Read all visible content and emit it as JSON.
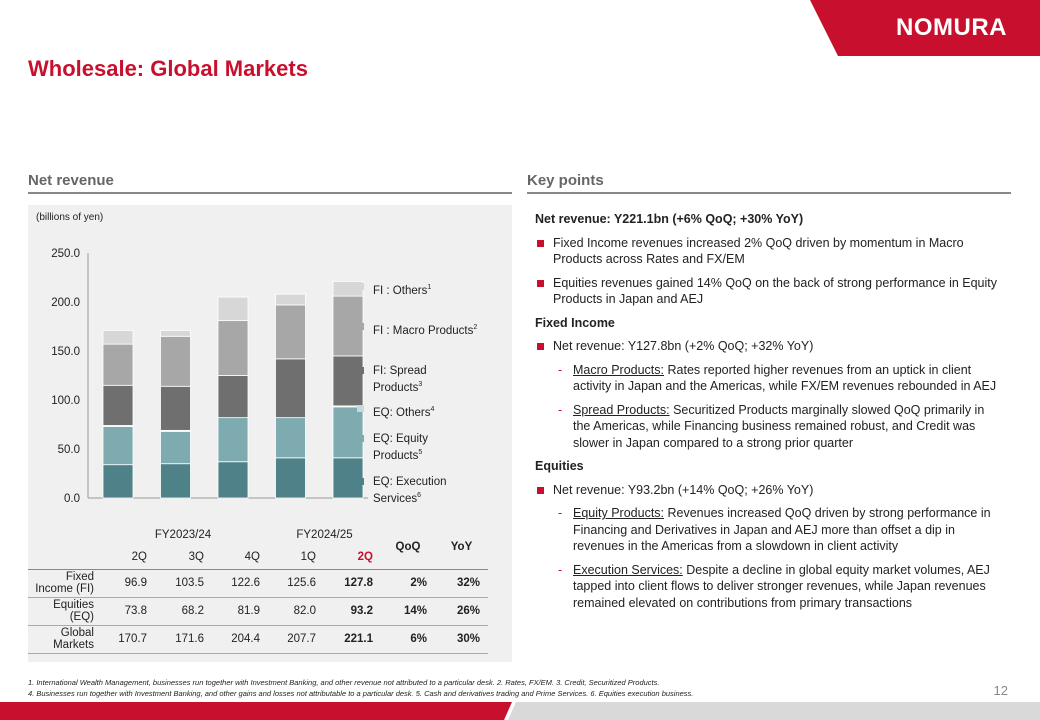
{
  "brand": {
    "name": "NOMURA",
    "color": "#c8102e"
  },
  "page": {
    "title": "Wholesale: Global Markets",
    "number": "12"
  },
  "left_section": {
    "heading": "Net revenue",
    "units": "(billions of yen)"
  },
  "right_section": {
    "heading": "Key points"
  },
  "chart_data": {
    "type": "bar",
    "stacked": true,
    "ylim": [
      0,
      250
    ],
    "yticks": [
      "0.0",
      "50.0",
      "100.0",
      "150.0",
      "200.0",
      "250.0"
    ],
    "ytick_values": [
      0,
      50,
      100,
      150,
      200,
      250
    ],
    "categories": [
      "FY2023/24 2Q",
      "FY2023/24 3Q",
      "FY2023/24 4Q",
      "FY2024/25 1Q",
      "FY2024/25 2Q"
    ],
    "series": [
      {
        "name": "EQ: Execution Services",
        "sup": "6",
        "color": "#4f8188",
        "values": [
          34,
          35,
          37,
          41,
          41
        ]
      },
      {
        "name": "EQ: Equity Products",
        "sup": "5",
        "color": "#7eabb0",
        "values": [
          39,
          33,
          45,
          41,
          52
        ]
      },
      {
        "name": "EQ: Others",
        "sup": "4",
        "color": "#c5dadd",
        "values": [
          1,
          1,
          0,
          0,
          1
        ]
      },
      {
        "name": "FI: Spread Products",
        "sup": "3",
        "color": "#6f6f6f",
        "values": [
          41,
          45,
          43,
          60,
          51
        ]
      },
      {
        "name": "FI : Macro Products",
        "sup": "2",
        "color": "#a7a7a7",
        "values": [
          42,
          51,
          56,
          55,
          61
        ]
      },
      {
        "name": "FI : Others",
        "sup": "1",
        "color": "#d7d7d7",
        "values": [
          14,
          6,
          24,
          11,
          15
        ]
      }
    ]
  },
  "legend": [
    {
      "label": "FI : Others",
      "sup": "1",
      "color": "#d7d7d7"
    },
    {
      "label": "FI : Macro Products",
      "sup": "2",
      "color": "#a7a7a7"
    },
    {
      "label_l1": "FI: Spread",
      "label_l2": "Products",
      "sup": "3",
      "color": "#6f6f6f"
    },
    {
      "label": "EQ: Others",
      "sup": "4",
      "color": "#c5dadd"
    },
    {
      "label_l1": "EQ: Equity",
      "label_l2": "Products",
      "sup": "5",
      "color": "#7eabb0"
    },
    {
      "label_l1": "EQ: Execution",
      "label_l2": "Services",
      "sup": "6",
      "color": "#4f8188"
    }
  ],
  "table": {
    "fy1": "FY2023/24",
    "fy2": "FY2024/25",
    "qoq": "QoQ",
    "yoy": "YoY",
    "quarters": [
      "2Q",
      "3Q",
      "4Q",
      "1Q",
      "2Q"
    ],
    "rows": [
      {
        "l1": "Fixed",
        "l2": "Income (FI)",
        "vals": [
          "96.9",
          "103.5",
          "122.6",
          "125.6",
          "127.8"
        ],
        "qoq": "2%",
        "yoy": "32%"
      },
      {
        "l1": "Equities",
        "l2": "(EQ)",
        "vals": [
          "73.8",
          "68.2",
          "81.9",
          "82.0",
          "93.2"
        ],
        "qoq": "14%",
        "yoy": "26%"
      },
      {
        "l1": "Global",
        "l2": "Markets",
        "vals": [
          "170.7",
          "171.6",
          "204.4",
          "207.7",
          "221.1"
        ],
        "qoq": "6%",
        "yoy": "30%"
      }
    ]
  },
  "key_points": {
    "net_revenue": "Net revenue: Y221.1bn (+6% QoQ; +30% YoY)",
    "b1": "Fixed Income revenues increased 2% QoQ driven by momentum in Macro Products across Rates and FX/EM",
    "b2": "Equities revenues gained 14% QoQ on the back of strong performance in Equity Products in Japan and AEJ",
    "fi_head": "Fixed Income",
    "fi_net": "Net revenue: Y127.8bn (+2% QoQ; +32% YoY)",
    "fi_macro_label": "Macro Products:",
    "fi_macro_text": " Rates reported higher revenues from an uptick in client activity in Japan and the Americas, while FX/EM revenues rebounded in AEJ",
    "fi_spread_label": "Spread Products:",
    "fi_spread_text": " Securitized Products marginally slowed QoQ primarily in the Americas, while Financing business remained robust, and Credit was slower in Japan compared to a strong prior quarter",
    "eq_head": "Equities",
    "eq_net": "Net revenue: Y93.2bn (+14% QoQ; +26% YoY)",
    "eq_products_label": "Equity Products:",
    "eq_products_text": " Revenues increased QoQ driven by strong performance in Financing and Derivatives in Japan and AEJ more than offset a dip in revenues in the Americas from a slowdown in client activity",
    "eq_exec_label": "Execution Services:",
    "eq_exec_text": " Despite a decline in global equity market volumes, AEJ tapped into client flows to deliver stronger revenues, while Japan revenues remained elevated on contributions from primary transactions"
  },
  "footnotes": {
    "line1": "1. International Wealth Management, businesses run together with Investment Banking, and other revenue not attributed to a particular desk. 2. Rates, FX/EM. 3. Credit, Securitized Products.",
    "line2": "4. Businesses run together with Investment Banking, and other gains and losses not attributable to a particular desk. 5. Cash and derivatives trading and Prime Services.  6. Equities execution business."
  }
}
